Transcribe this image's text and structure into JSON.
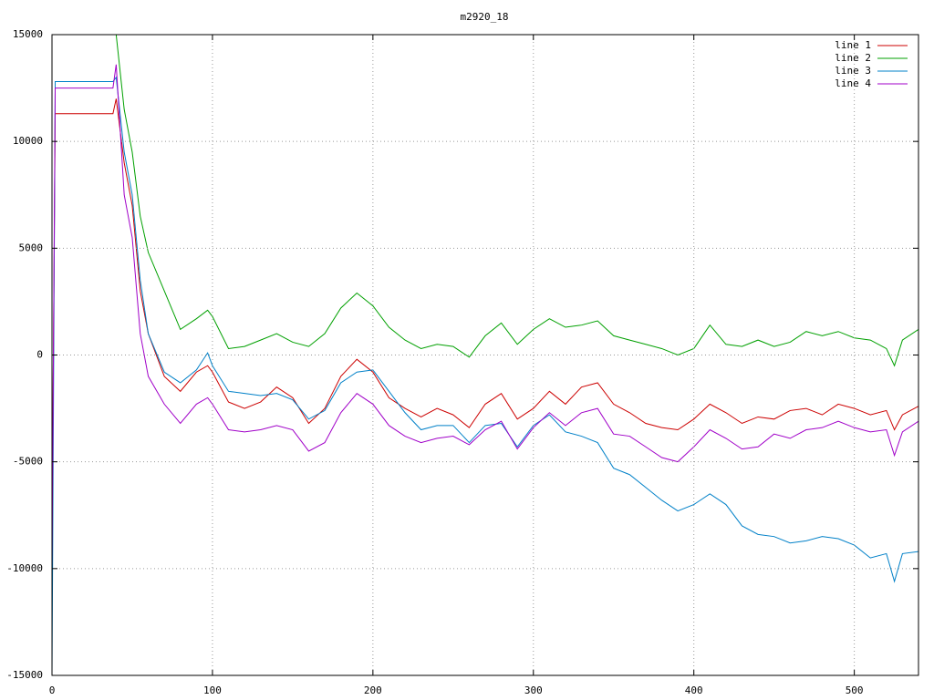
{
  "chart_data": {
    "type": "line",
    "title": "m2920_18",
    "x": [
      0,
      2,
      4,
      10,
      20,
      30,
      38,
      40,
      45,
      50,
      55,
      60,
      70,
      80,
      90,
      97,
      100,
      110,
      120,
      130,
      140,
      150,
      160,
      170,
      180,
      190,
      200,
      210,
      220,
      230,
      240,
      250,
      260,
      270,
      280,
      290,
      300,
      310,
      320,
      330,
      340,
      350,
      360,
      370,
      380,
      390,
      400,
      410,
      420,
      430,
      440,
      450,
      460,
      470,
      480,
      490,
      500,
      510,
      520,
      525,
      530,
      540
    ],
    "series": [
      {
        "name": "line 1",
        "color": "#cc0000",
        "values": [
          -9000,
          11300,
          11300,
          11300,
          11300,
          11300,
          11300,
          12000,
          9000,
          7000,
          3000,
          1000,
          -1000,
          -1700,
          -800,
          -500,
          -800,
          -2200,
          -2500,
          -2200,
          -1500,
          -2000,
          -3200,
          -2500,
          -1000,
          -200,
          -800,
          -2000,
          -2500,
          -2900,
          -2500,
          -2800,
          -3400,
          -2300,
          -1800,
          -3000,
          -2500,
          -1700,
          -2300,
          -1500,
          -1300,
          -2300,
          -2700,
          -3200,
          -3400,
          -3500,
          -3000,
          -2300,
          -2700,
          -3200,
          -2900,
          -3000,
          -2600,
          -2500,
          -2800,
          -2300,
          -2500,
          -2800,
          -2600,
          -3500,
          -2800,
          -2400
        ]
      },
      {
        "name": "line 2",
        "color": "#00a000",
        "values": [
          15000,
          15000,
          15000,
          15000,
          15000,
          15000,
          15000,
          15000,
          11500,
          9500,
          6500,
          4800,
          3000,
          1200,
          1700,
          2100,
          1800,
          300,
          400,
          700,
          1000,
          600,
          400,
          1000,
          2200,
          2900,
          2300,
          1300,
          700,
          300,
          500,
          400,
          -100,
          900,
          1500,
          500,
          1200,
          1700,
          1300,
          1400,
          1600,
          900,
          700,
          500,
          300,
          0,
          300,
          1400,
          500,
          400,
          700,
          400,
          600,
          1100,
          900,
          1100,
          800,
          700,
          300,
          -500,
          700,
          1200
        ]
      },
      {
        "name": "line 3",
        "color": "#0080c8",
        "values": [
          -15000,
          12800,
          12800,
          12800,
          12800,
          12800,
          12800,
          13000,
          9500,
          7500,
          3500,
          1000,
          -800,
          -1300,
          -700,
          100,
          -500,
          -1700,
          -1800,
          -1900,
          -1800,
          -2100,
          -3000,
          -2600,
          -1300,
          -800,
          -700,
          -1700,
          -2700,
          -3500,
          -3300,
          -3300,
          -4100,
          -3300,
          -3200,
          -4300,
          -3300,
          -2800,
          -3600,
          -3800,
          -4100,
          -5300,
          -5600,
          -6200,
          -6800,
          -7300,
          -7000,
          -6500,
          -7000,
          -8000,
          -8400,
          -8500,
          -8800,
          -8700,
          -8500,
          -8600,
          -8900,
          -9500,
          -9300,
          -10600,
          -9300,
          -9200
        ]
      },
      {
        "name": "line 4",
        "color": "#a000c8",
        "values": [
          -10000,
          12500,
          12500,
          12500,
          12500,
          12500,
          12500,
          13600,
          7500,
          5500,
          1000,
          -1000,
          -2300,
          -3200,
          -2300,
          -2000,
          -2300,
          -3500,
          -3600,
          -3500,
          -3300,
          -3500,
          -4500,
          -4100,
          -2700,
          -1800,
          -2300,
          -3300,
          -3800,
          -4100,
          -3900,
          -3800,
          -4200,
          -3500,
          -3100,
          -4400,
          -3400,
          -2700,
          -3300,
          -2700,
          -2500,
          -3700,
          -3800,
          -4300,
          -4800,
          -5000,
          -4300,
          -3500,
          -3900,
          -4400,
          -4300,
          -3700,
          -3900,
          -3500,
          -3400,
          -3100,
          -3400,
          -3600,
          -3500,
          -4700,
          -3600,
          -3100
        ]
      }
    ],
    "xlim": [
      0,
      540
    ],
    "ylim": [
      -15000,
      15000
    ],
    "xticks": [
      0,
      100,
      200,
      300,
      400,
      500
    ],
    "yticks": [
      -15000,
      -10000,
      -5000,
      0,
      5000,
      10000,
      15000
    ],
    "grid": true,
    "legend": "top-right"
  }
}
